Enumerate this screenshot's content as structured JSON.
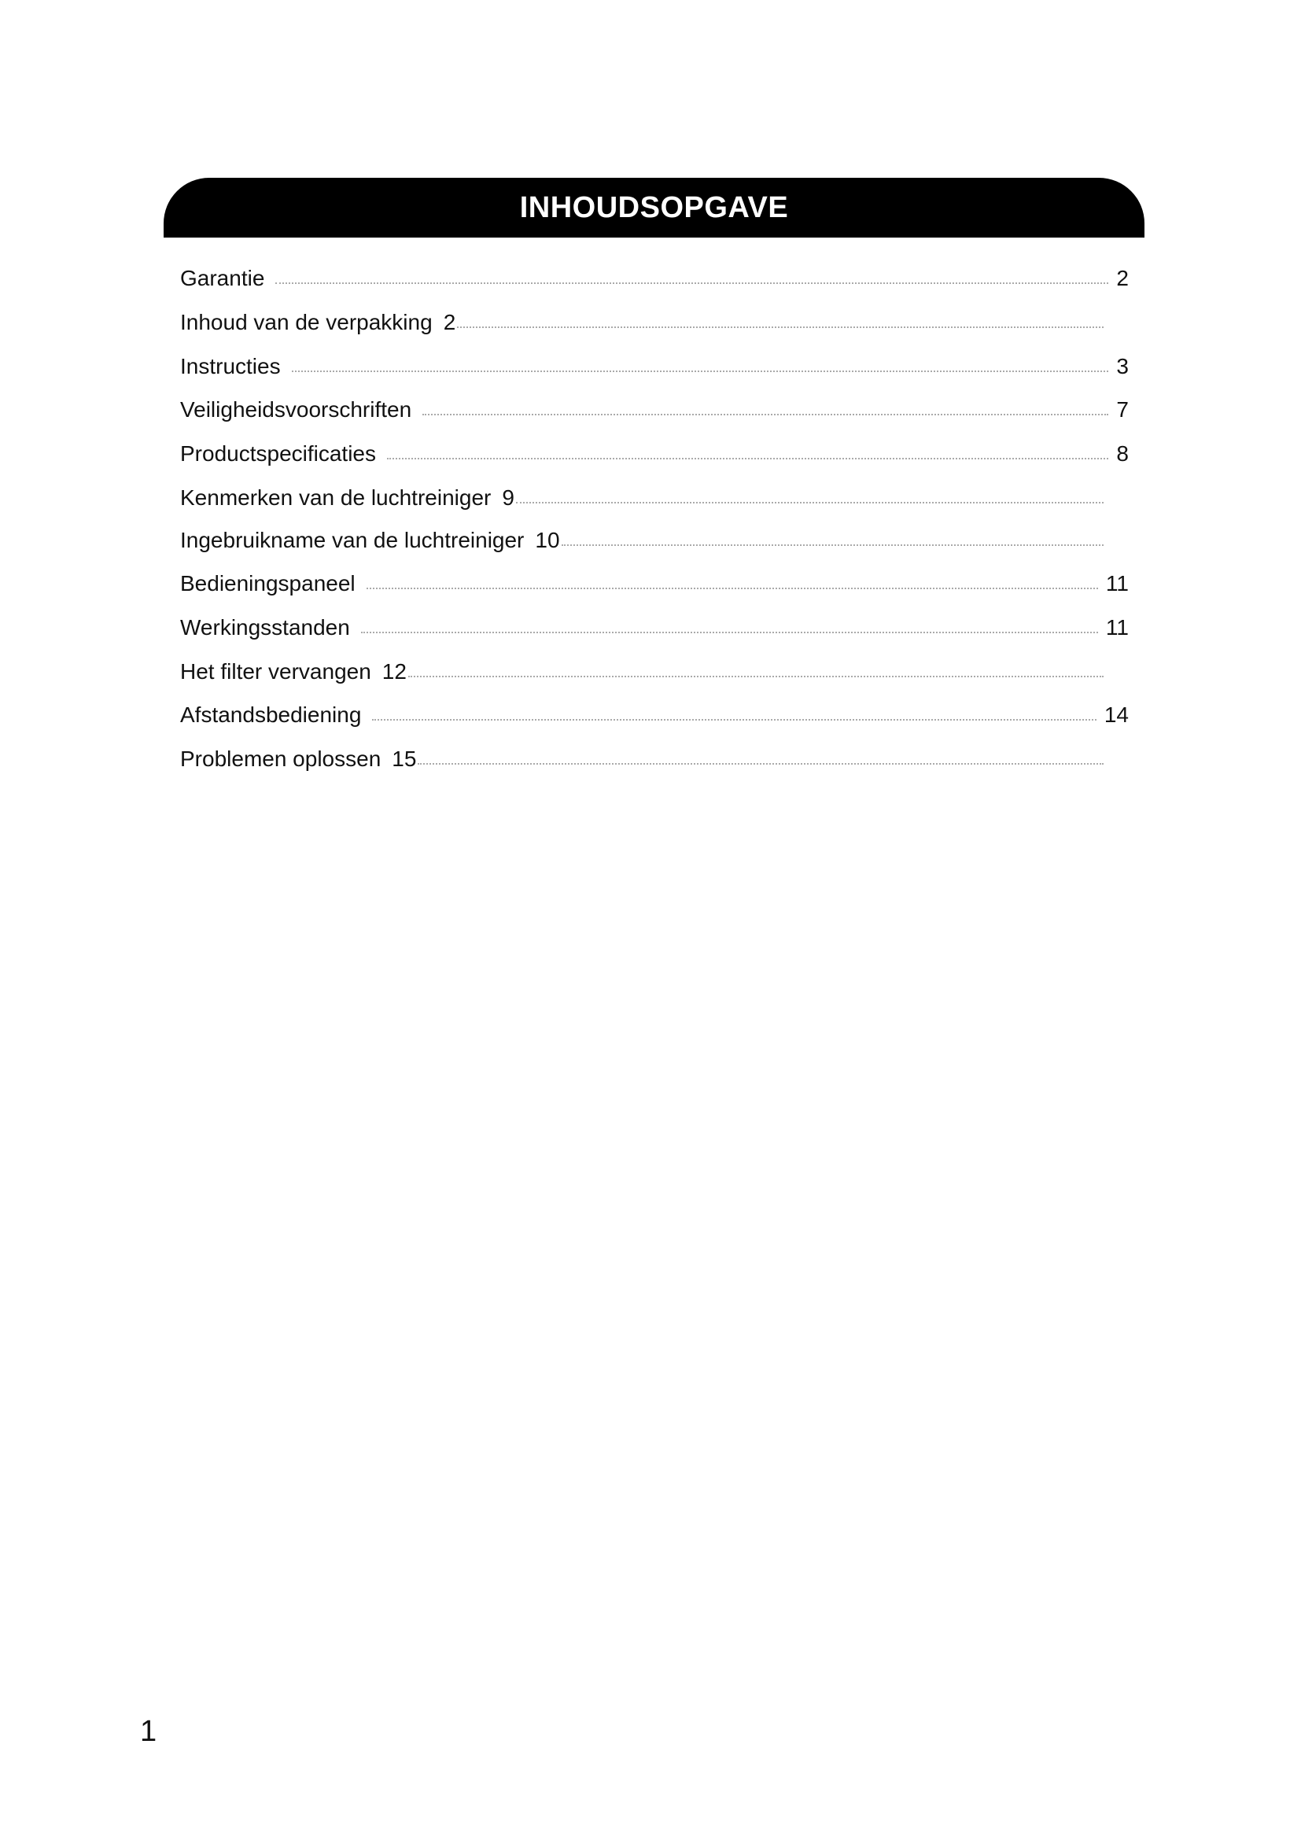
{
  "title": "INHOUDSOPGAVE",
  "items": [
    {
      "label": "Garantie",
      "page": "2"
    },
    {
      "label": "Inhoud van de verpakking",
      "page": "2"
    },
    {
      "label": "Instructies",
      "page": "3"
    },
    {
      "label": "Veiligheidsvoorschriften",
      "page": "7"
    },
    {
      "label": "Productspecificaties",
      "page": "8"
    },
    {
      "label": "Kenmerken van de luchtreiniger",
      "page": "9"
    },
    {
      "label": "Ingebruikname van de luchtreiniger",
      "page": "10"
    },
    {
      "label": "Bedieningspaneel",
      "page": "11"
    },
    {
      "label": "Werkingsstanden",
      "page": "11"
    },
    {
      "label": "Het filter vervangen",
      "page": "12"
    },
    {
      "label": "Afstandsbediening",
      "page": "14"
    },
    {
      "label": "Problemen oplossen",
      "page": "15"
    }
  ],
  "page_number": "1"
}
